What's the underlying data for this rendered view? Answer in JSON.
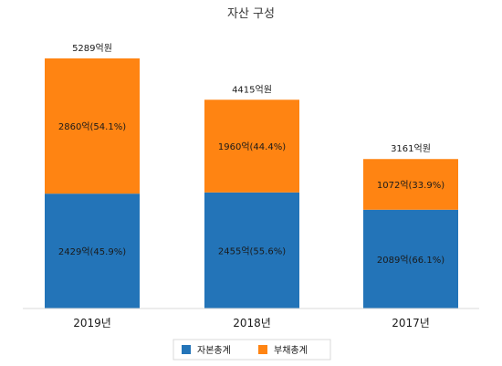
{
  "chart_data": {
    "type": "bar",
    "stacked": true,
    "title": "자산 구성",
    "categories": [
      "2019년",
      "2018년",
      "2017년"
    ],
    "series": [
      {
        "name": "자본총계",
        "color": "#2374b8",
        "values": [
          2429,
          2455,
          2089
        ],
        "labels": [
          "2429억(45.9%)",
          "2455억(55.6%)",
          "2089억(66.1%)"
        ]
      },
      {
        "name": "부채총계",
        "color": "#ff8412",
        "values": [
          2860,
          1960,
          1072
        ],
        "labels": [
          "2860억(54.1%)",
          "1960억(44.4%)",
          "1072억(33.9%)"
        ]
      }
    ],
    "totals": [
      5289,
      4415,
      3161
    ],
    "total_labels": [
      "5289억원",
      "4415억원",
      "3161억원"
    ],
    "ylim": [
      0,
      5289
    ],
    "grid": false,
    "legend_position": "bottom"
  }
}
